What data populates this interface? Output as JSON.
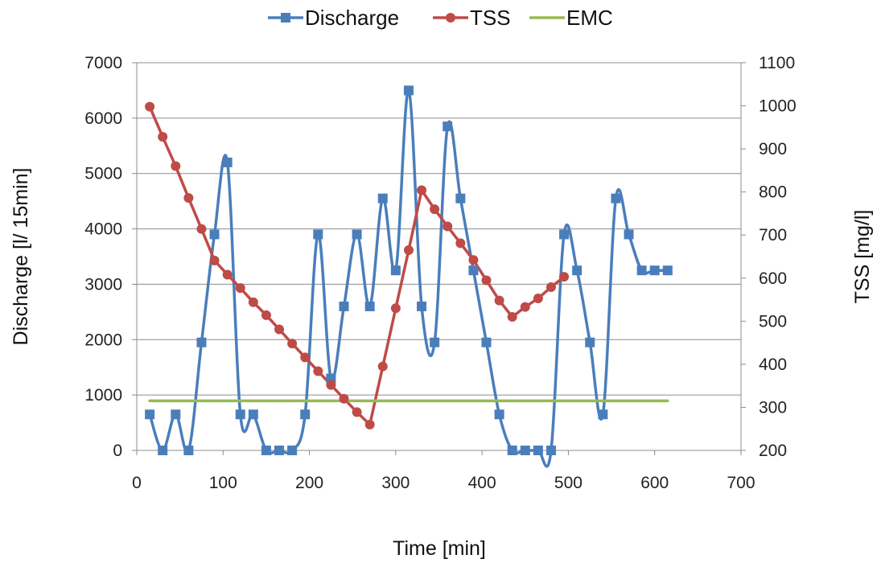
{
  "chart_data": {
    "type": "line",
    "title": "",
    "xlabel": "Time [min]",
    "ylabel": "Discharge [l/ 15min]",
    "y2label": "TSS [mg/l]",
    "xlim": [
      0,
      700
    ],
    "ylim": [
      0,
      7000
    ],
    "y2lim": [
      200,
      1100
    ],
    "xticks": [
      0,
      100,
      200,
      300,
      400,
      500,
      600,
      700
    ],
    "yticks": [
      0,
      1000,
      2000,
      3000,
      4000,
      5000,
      6000,
      7000
    ],
    "y2ticks": [
      200,
      300,
      400,
      500,
      600,
      700,
      800,
      900,
      1000,
      1100
    ],
    "grid": "horizontal",
    "legend_position": "top",
    "series": [
      {
        "name": "Discharge",
        "axis": "left",
        "color": "#4a7ebb",
        "marker": "square",
        "smooth": true,
        "x": [
          15,
          30,
          45,
          60,
          75,
          90,
          105,
          120,
          135,
          150,
          165,
          180,
          195,
          210,
          225,
          240,
          255,
          270,
          285,
          300,
          315,
          330,
          345,
          360,
          375,
          390,
          405,
          420,
          435,
          450,
          465,
          480,
          495,
          510,
          525,
          540,
          555,
          570,
          585,
          600,
          615
        ],
        "y": [
          650,
          0,
          650,
          0,
          1950,
          3900,
          5200,
          650,
          650,
          0,
          0,
          0,
          650,
          3900,
          1300,
          2600,
          3900,
          2600,
          4550,
          3250,
          6500,
          2600,
          1950,
          5850,
          4550,
          3250,
          1950,
          650,
          0,
          0,
          0,
          0,
          3900,
          3250,
          1950,
          650,
          4550,
          3900,
          3250,
          3250,
          3250
        ]
      },
      {
        "name": "TSS",
        "axis": "right",
        "color": "#be4b48",
        "marker": "circle",
        "smooth": false,
        "x": [
          15,
          30,
          45,
          60,
          75,
          90,
          105,
          120,
          135,
          150,
          165,
          180,
          195,
          210,
          225,
          240,
          255,
          270,
          285,
          300,
          315,
          330,
          345,
          360,
          375,
          390,
          405,
          420,
          435,
          450,
          465,
          480,
          495
        ],
        "y": [
          998,
          928,
          860,
          786,
          714,
          641,
          608,
          577,
          544,
          514,
          481,
          448,
          416,
          384,
          352,
          320,
          289,
          260,
          395,
          530,
          665,
          804,
          760,
          720,
          681,
          642,
          595,
          548,
          510,
          533,
          553,
          579,
          603
        ]
      },
      {
        "name": "EMC",
        "axis": "right",
        "color": "#98b954",
        "marker": "none",
        "smooth": false,
        "x": [
          15,
          615
        ],
        "y": [
          315,
          315
        ]
      }
    ]
  }
}
